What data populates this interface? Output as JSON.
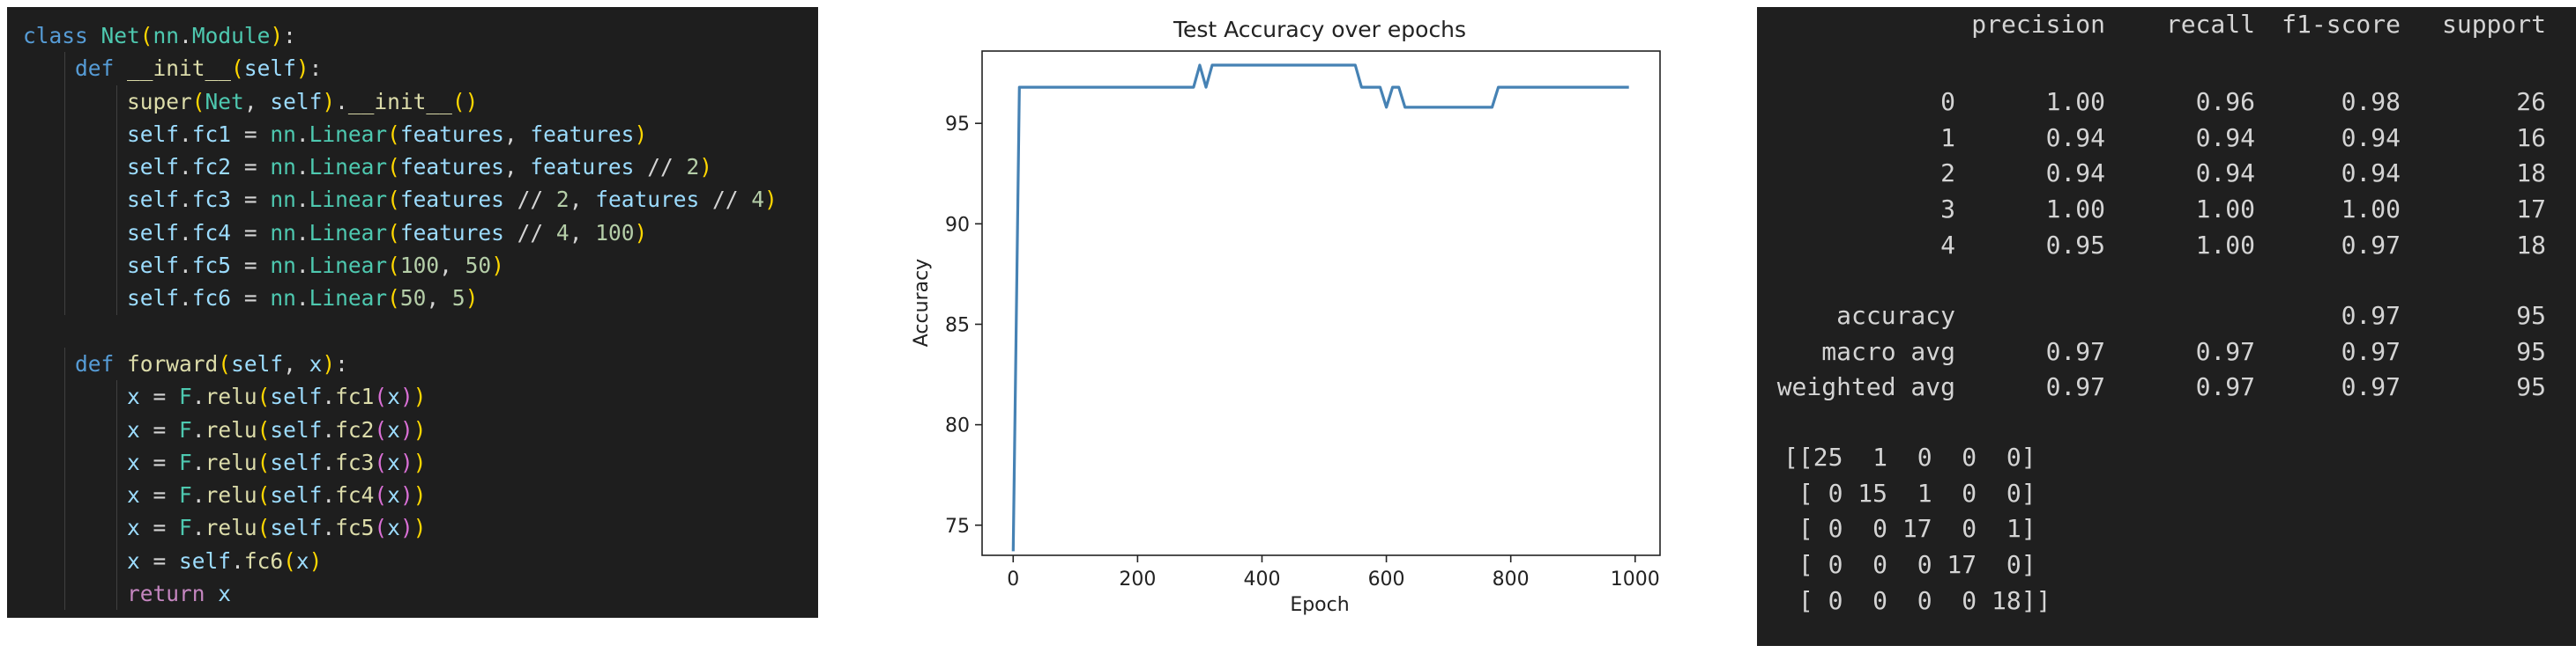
{
  "code": {
    "lines": [
      [
        {
          "t": "class ",
          "c": "k"
        },
        {
          "t": "Net",
          "c": "c"
        },
        {
          "t": "(",
          "c": "p1"
        },
        {
          "t": "nn",
          "c": "c"
        },
        {
          "t": ".",
          "c": "o"
        },
        {
          "t": "Module",
          "c": "c"
        },
        {
          "t": ")",
          "c": "p1"
        },
        {
          "t": ":",
          "c": "o"
        }
      ],
      [
        {
          "t": "    "
        },
        {
          "t": "def ",
          "c": "k"
        },
        {
          "t": "__init__",
          "c": "f"
        },
        {
          "t": "(",
          "c": "p1"
        },
        {
          "t": "self",
          "c": "v"
        },
        {
          "t": ")",
          "c": "p1"
        },
        {
          "t": ":",
          "c": "o"
        }
      ],
      [
        {
          "t": "        "
        },
        {
          "t": "super",
          "c": "f"
        },
        {
          "t": "(",
          "c": "p1"
        },
        {
          "t": "Net",
          "c": "c"
        },
        {
          "t": ", ",
          "c": "o"
        },
        {
          "t": "self",
          "c": "v"
        },
        {
          "t": ")",
          "c": "p1"
        },
        {
          "t": ".",
          "c": "o"
        },
        {
          "t": "__init__",
          "c": "f"
        },
        {
          "t": "()",
          "c": "p1"
        }
      ],
      [
        {
          "t": "        "
        },
        {
          "t": "self",
          "c": "v"
        },
        {
          "t": ".",
          "c": "o"
        },
        {
          "t": "fc1",
          "c": "v"
        },
        {
          "t": " = ",
          "c": "o"
        },
        {
          "t": "nn",
          "c": "c"
        },
        {
          "t": ".",
          "c": "o"
        },
        {
          "t": "Linear",
          "c": "c"
        },
        {
          "t": "(",
          "c": "p1"
        },
        {
          "t": "features",
          "c": "v"
        },
        {
          "t": ", ",
          "c": "o"
        },
        {
          "t": "features",
          "c": "v"
        },
        {
          "t": ")",
          "c": "p1"
        }
      ],
      [
        {
          "t": "        "
        },
        {
          "t": "self",
          "c": "v"
        },
        {
          "t": ".",
          "c": "o"
        },
        {
          "t": "fc2",
          "c": "v"
        },
        {
          "t": " = ",
          "c": "o"
        },
        {
          "t": "nn",
          "c": "c"
        },
        {
          "t": ".",
          "c": "o"
        },
        {
          "t": "Linear",
          "c": "c"
        },
        {
          "t": "(",
          "c": "p1"
        },
        {
          "t": "features",
          "c": "v"
        },
        {
          "t": ", ",
          "c": "o"
        },
        {
          "t": "features",
          "c": "v"
        },
        {
          "t": " // ",
          "c": "o"
        },
        {
          "t": "2",
          "c": "n"
        },
        {
          "t": ")",
          "c": "p1"
        }
      ],
      [
        {
          "t": "        "
        },
        {
          "t": "self",
          "c": "v"
        },
        {
          "t": ".",
          "c": "o"
        },
        {
          "t": "fc3",
          "c": "v"
        },
        {
          "t": " = ",
          "c": "o"
        },
        {
          "t": "nn",
          "c": "c"
        },
        {
          "t": ".",
          "c": "o"
        },
        {
          "t": "Linear",
          "c": "c"
        },
        {
          "t": "(",
          "c": "p1"
        },
        {
          "t": "features",
          "c": "v"
        },
        {
          "t": " // ",
          "c": "o"
        },
        {
          "t": "2",
          "c": "n"
        },
        {
          "t": ", ",
          "c": "o"
        },
        {
          "t": "features",
          "c": "v"
        },
        {
          "t": " // ",
          "c": "o"
        },
        {
          "t": "4",
          "c": "n"
        },
        {
          "t": ")",
          "c": "p1"
        }
      ],
      [
        {
          "t": "        "
        },
        {
          "t": "self",
          "c": "v"
        },
        {
          "t": ".",
          "c": "o"
        },
        {
          "t": "fc4",
          "c": "v"
        },
        {
          "t": " = ",
          "c": "o"
        },
        {
          "t": "nn",
          "c": "c"
        },
        {
          "t": ".",
          "c": "o"
        },
        {
          "t": "Linear",
          "c": "c"
        },
        {
          "t": "(",
          "c": "p1"
        },
        {
          "t": "features",
          "c": "v"
        },
        {
          "t": " // ",
          "c": "o"
        },
        {
          "t": "4",
          "c": "n"
        },
        {
          "t": ", ",
          "c": "o"
        },
        {
          "t": "100",
          "c": "n"
        },
        {
          "t": ")",
          "c": "p1"
        }
      ],
      [
        {
          "t": "        "
        },
        {
          "t": "self",
          "c": "v"
        },
        {
          "t": ".",
          "c": "o"
        },
        {
          "t": "fc5",
          "c": "v"
        },
        {
          "t": " = ",
          "c": "o"
        },
        {
          "t": "nn",
          "c": "c"
        },
        {
          "t": ".",
          "c": "o"
        },
        {
          "t": "Linear",
          "c": "c"
        },
        {
          "t": "(",
          "c": "p1"
        },
        {
          "t": "100",
          "c": "n"
        },
        {
          "t": ", ",
          "c": "o"
        },
        {
          "t": "50",
          "c": "n"
        },
        {
          "t": ")",
          "c": "p1"
        }
      ],
      [
        {
          "t": "        "
        },
        {
          "t": "self",
          "c": "v"
        },
        {
          "t": ".",
          "c": "o"
        },
        {
          "t": "fc6",
          "c": "v"
        },
        {
          "t": " = ",
          "c": "o"
        },
        {
          "t": "nn",
          "c": "c"
        },
        {
          "t": ".",
          "c": "o"
        },
        {
          "t": "Linear",
          "c": "c"
        },
        {
          "t": "(",
          "c": "p1"
        },
        {
          "t": "50",
          "c": "n"
        },
        {
          "t": ", ",
          "c": "o"
        },
        {
          "t": "5",
          "c": "n"
        },
        {
          "t": ")",
          "c": "p1"
        }
      ],
      [],
      [
        {
          "t": "    "
        },
        {
          "t": "def ",
          "c": "k"
        },
        {
          "t": "forward",
          "c": "f"
        },
        {
          "t": "(",
          "c": "p1"
        },
        {
          "t": "self",
          "c": "v"
        },
        {
          "t": ", ",
          "c": "o"
        },
        {
          "t": "x",
          "c": "v"
        },
        {
          "t": ")",
          "c": "p1"
        },
        {
          "t": ":",
          "c": "o"
        }
      ],
      [
        {
          "t": "        "
        },
        {
          "t": "x",
          "c": "v"
        },
        {
          "t": " = ",
          "c": "o"
        },
        {
          "t": "F",
          "c": "c"
        },
        {
          "t": ".",
          "c": "o"
        },
        {
          "t": "relu",
          "c": "f"
        },
        {
          "t": "(",
          "c": "p1"
        },
        {
          "t": "self",
          "c": "v"
        },
        {
          "t": ".",
          "c": "o"
        },
        {
          "t": "fc1",
          "c": "f"
        },
        {
          "t": "(",
          "c": "p2"
        },
        {
          "t": "x",
          "c": "v"
        },
        {
          "t": ")",
          "c": "p2"
        },
        {
          "t": ")",
          "c": "p1"
        }
      ],
      [
        {
          "t": "        "
        },
        {
          "t": "x",
          "c": "v"
        },
        {
          "t": " = ",
          "c": "o"
        },
        {
          "t": "F",
          "c": "c"
        },
        {
          "t": ".",
          "c": "o"
        },
        {
          "t": "relu",
          "c": "f"
        },
        {
          "t": "(",
          "c": "p1"
        },
        {
          "t": "self",
          "c": "v"
        },
        {
          "t": ".",
          "c": "o"
        },
        {
          "t": "fc2",
          "c": "f"
        },
        {
          "t": "(",
          "c": "p2"
        },
        {
          "t": "x",
          "c": "v"
        },
        {
          "t": ")",
          "c": "p2"
        },
        {
          "t": ")",
          "c": "p1"
        }
      ],
      [
        {
          "t": "        "
        },
        {
          "t": "x",
          "c": "v"
        },
        {
          "t": " = ",
          "c": "o"
        },
        {
          "t": "F",
          "c": "c"
        },
        {
          "t": ".",
          "c": "o"
        },
        {
          "t": "relu",
          "c": "f"
        },
        {
          "t": "(",
          "c": "p1"
        },
        {
          "t": "self",
          "c": "v"
        },
        {
          "t": ".",
          "c": "o"
        },
        {
          "t": "fc3",
          "c": "f"
        },
        {
          "t": "(",
          "c": "p2"
        },
        {
          "t": "x",
          "c": "v"
        },
        {
          "t": ")",
          "c": "p2"
        },
        {
          "t": ")",
          "c": "p1"
        }
      ],
      [
        {
          "t": "        "
        },
        {
          "t": "x",
          "c": "v"
        },
        {
          "t": " = ",
          "c": "o"
        },
        {
          "t": "F",
          "c": "c"
        },
        {
          "t": ".",
          "c": "o"
        },
        {
          "t": "relu",
          "c": "f"
        },
        {
          "t": "(",
          "c": "p1"
        },
        {
          "t": "self",
          "c": "v"
        },
        {
          "t": ".",
          "c": "o"
        },
        {
          "t": "fc4",
          "c": "f"
        },
        {
          "t": "(",
          "c": "p2"
        },
        {
          "t": "x",
          "c": "v"
        },
        {
          "t": ")",
          "c": "p2"
        },
        {
          "t": ")",
          "c": "p1"
        }
      ],
      [
        {
          "t": "        "
        },
        {
          "t": "x",
          "c": "v"
        },
        {
          "t": " = ",
          "c": "o"
        },
        {
          "t": "F",
          "c": "c"
        },
        {
          "t": ".",
          "c": "o"
        },
        {
          "t": "relu",
          "c": "f"
        },
        {
          "t": "(",
          "c": "p1"
        },
        {
          "t": "self",
          "c": "v"
        },
        {
          "t": ".",
          "c": "o"
        },
        {
          "t": "fc5",
          "c": "f"
        },
        {
          "t": "(",
          "c": "p2"
        },
        {
          "t": "x",
          "c": "v"
        },
        {
          "t": ")",
          "c": "p2"
        },
        {
          "t": ")",
          "c": "p1"
        }
      ],
      [
        {
          "t": "        "
        },
        {
          "t": "x",
          "c": "v"
        },
        {
          "t": " = ",
          "c": "o"
        },
        {
          "t": "self",
          "c": "v"
        },
        {
          "t": ".",
          "c": "o"
        },
        {
          "t": "fc6",
          "c": "f"
        },
        {
          "t": "(",
          "c": "p1"
        },
        {
          "t": "x",
          "c": "v"
        },
        {
          "t": ")",
          "c": "p1"
        }
      ],
      [
        {
          "t": "        "
        },
        {
          "t": "return ",
          "c": "r"
        },
        {
          "t": "x",
          "c": "v"
        }
      ]
    ]
  },
  "chart_data": {
    "type": "line",
    "title": "Test Accuracy over epochs",
    "xlabel": "Epoch",
    "ylabel": "Accuracy",
    "xlim": [
      -50,
      1040
    ],
    "ylim": [
      73.5,
      98.6
    ],
    "xticks": [
      0,
      200,
      400,
      600,
      800,
      1000
    ],
    "yticks": [
      75,
      80,
      85,
      90,
      95
    ],
    "grid": false,
    "color": "#4682b4",
    "series": [
      {
        "x": [
          0,
          10,
          20,
          100,
          200,
          290,
          300,
          310,
          320,
          400,
          500,
          550,
          560,
          580,
          590,
          600,
          610,
          620,
          630,
          700,
          770,
          780,
          900,
          990
        ],
        "values": [
          73.7,
          96.8,
          96.8,
          96.8,
          96.8,
          96.8,
          97.9,
          96.8,
          97.9,
          97.9,
          97.9,
          97.9,
          96.8,
          96.8,
          96.8,
          95.8,
          96.8,
          96.8,
          95.8,
          95.8,
          95.8,
          96.8,
          96.8,
          96.8
        ]
      }
    ]
  },
  "report": {
    "headers": [
      "precision",
      "recall",
      "f1-score",
      "support"
    ],
    "rows": [
      {
        "label": "0",
        "values": [
          "1.00",
          "0.96",
          "0.98",
          "26"
        ]
      },
      {
        "label": "1",
        "values": [
          "0.94",
          "0.94",
          "0.94",
          "16"
        ]
      },
      {
        "label": "2",
        "values": [
          "0.94",
          "0.94",
          "0.94",
          "18"
        ]
      },
      {
        "label": "3",
        "values": [
          "1.00",
          "1.00",
          "1.00",
          "17"
        ]
      },
      {
        "label": "4",
        "values": [
          "0.95",
          "1.00",
          "0.97",
          "18"
        ]
      }
    ],
    "summary": [
      {
        "label": "accuracy",
        "values": [
          "",
          "",
          "0.97",
          "95"
        ]
      },
      {
        "label": "macro avg",
        "values": [
          "0.97",
          "0.97",
          "0.97",
          "95"
        ]
      },
      {
        "label": "weighted avg",
        "values": [
          "0.97",
          "0.97",
          "0.97",
          "95"
        ]
      }
    ],
    "matrix_lines": [
      "[[25  1  0  0  0]",
      " [ 0 15  1  0  0]",
      " [ 0  0 17  0  1]",
      " [ 0  0  0 17  0]",
      " [ 0  0  0  0 18]]"
    ]
  }
}
